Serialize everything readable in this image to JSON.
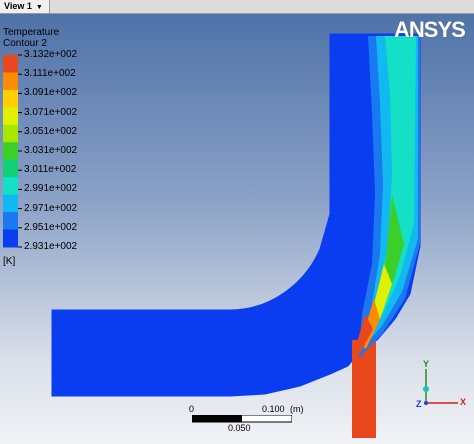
{
  "tab": {
    "label": "View 1",
    "arrow": "▼"
  },
  "logo": {
    "text": "ANSYS"
  },
  "legend": {
    "title_line1": "Temperature",
    "title_line2": "Contour 2",
    "unit": "[K]",
    "ticks": [
      "3.132e+002",
      "3.111e+002",
      "3.091e+002",
      "3.071e+002",
      "3.051e+002",
      "3.031e+002",
      "3.011e+002",
      "2.991e+002",
      "2.971e+002",
      "2.951e+002",
      "2.931e+002"
    ],
    "colors": [
      "#e8481c",
      "#ff8c00",
      "#ffcf00",
      "#e0f000",
      "#a6e800",
      "#3ccf2a",
      "#10d078",
      "#14e0c8",
      "#12b8f0",
      "#1a78f0",
      "#0a3cf0"
    ]
  },
  "scale": {
    "zero": "0",
    "mid": "0.050",
    "end": "0.100",
    "unit": "(m)"
  },
  "triad": {
    "x": "X",
    "y": "Y",
    "z": "Z"
  }
}
